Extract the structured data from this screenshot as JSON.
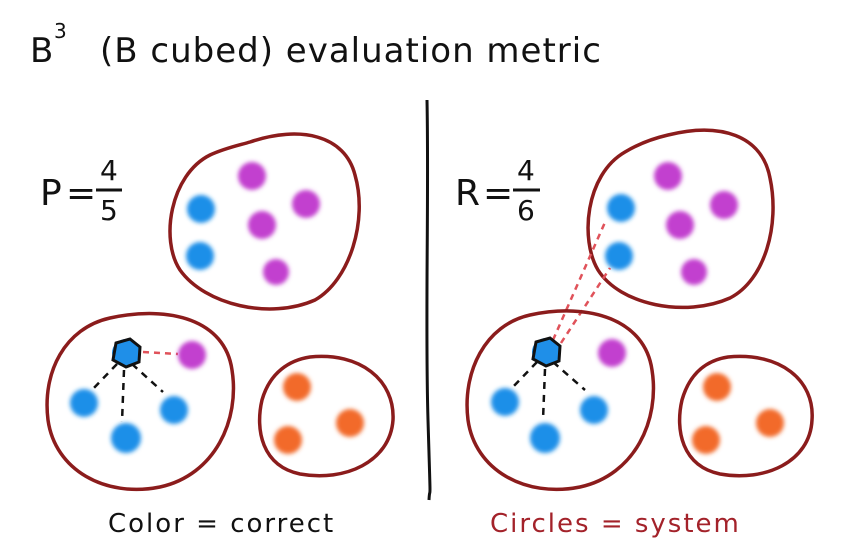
{
  "title": {
    "main": "B",
    "superscript": "3",
    "rest": "(B cubed) evaluation metric"
  },
  "left": {
    "metric_letter": "P",
    "equals": "=",
    "numerator": "4",
    "denominator": "5",
    "caption": "Color = correct"
  },
  "right": {
    "metric_letter": "R",
    "equals": "=",
    "numerator": "4",
    "denominator": "6",
    "caption": "Circles = system"
  },
  "colors": {
    "blue": "#1f8fe8",
    "magenta": "#c23fcf",
    "orange": "#f26a2a",
    "cluster_outline": "#8b1c1c",
    "red_link": "#e0525a",
    "caption_red": "#a3222a",
    "ink": "#111111"
  },
  "icons": {
    "selected_item": "hexagon-outline-icon"
  }
}
